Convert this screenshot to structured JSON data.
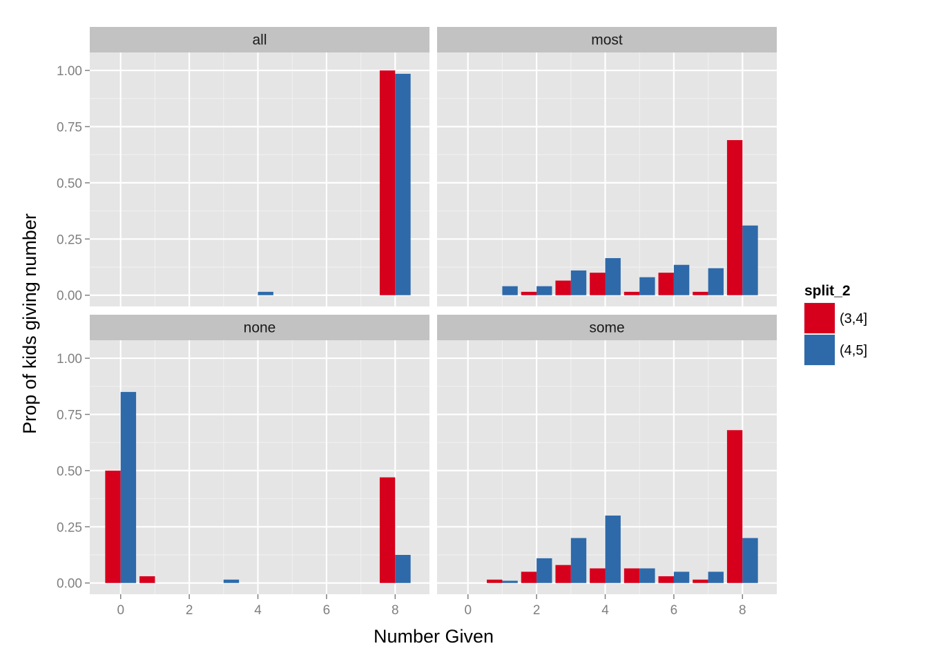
{
  "chart_data": {
    "type": "bar",
    "xlabel": "Number Given",
    "ylabel": "Prop of kids giving number",
    "xlim": [
      -0.9,
      9.0
    ],
    "ylim": [
      -0.05,
      1.08
    ],
    "x_ticks": [
      0,
      2,
      4,
      6,
      8
    ],
    "x_tick_labels": [
      "0",
      "2",
      "4",
      "6",
      "8"
    ],
    "y_ticks": [
      0,
      0.25,
      0.5,
      0.75,
      1.0
    ],
    "y_tick_labels": [
      "0.00",
      "0.25",
      "0.50",
      "0.75",
      "1.00"
    ],
    "grid": true,
    "legend": {
      "title": "split_2",
      "position": "right",
      "entries": [
        {
          "label": "(3,4]",
          "color": "#d7001c"
        },
        {
          "label": "(4,5]",
          "color": "#2e6aaa"
        }
      ]
    },
    "facets": [
      {
        "label": "all",
        "series": [
          {
            "group": "(3,4]",
            "points": [
              {
                "x": 8,
                "y": 1.0
              }
            ]
          },
          {
            "group": "(4,5]",
            "points": [
              {
                "x": 4,
                "y": 0.015
              },
              {
                "x": 8,
                "y": 0.985
              }
            ]
          }
        ]
      },
      {
        "label": "most",
        "series": [
          {
            "group": "(3,4]",
            "points": [
              {
                "x": 2,
                "y": 0.015
              },
              {
                "x": 3,
                "y": 0.065
              },
              {
                "x": 4,
                "y": 0.1
              },
              {
                "x": 5,
                "y": 0.015
              },
              {
                "x": 6,
                "y": 0.1
              },
              {
                "x": 7,
                "y": 0.015
              },
              {
                "x": 8,
                "y": 0.69
              }
            ]
          },
          {
            "group": "(4,5]",
            "points": [
              {
                "x": 1,
                "y": 0.04
              },
              {
                "x": 2,
                "y": 0.04
              },
              {
                "x": 3,
                "y": 0.11
              },
              {
                "x": 4,
                "y": 0.165
              },
              {
                "x": 5,
                "y": 0.08
              },
              {
                "x": 6,
                "y": 0.135
              },
              {
                "x": 7,
                "y": 0.12
              },
              {
                "x": 8,
                "y": 0.31
              }
            ]
          }
        ]
      },
      {
        "label": "none",
        "series": [
          {
            "group": "(3,4]",
            "points": [
              {
                "x": 0,
                "y": 0.5
              },
              {
                "x": 1,
                "y": 0.03
              },
              {
                "x": 8,
                "y": 0.47
              }
            ]
          },
          {
            "group": "(4,5]",
            "points": [
              {
                "x": 0,
                "y": 0.85
              },
              {
                "x": 3,
                "y": 0.015
              },
              {
                "x": 8,
                "y": 0.125
              }
            ]
          }
        ]
      },
      {
        "label": "some",
        "series": [
          {
            "group": "(3,4]",
            "points": [
              {
                "x": 1,
                "y": 0.015
              },
              {
                "x": 2,
                "y": 0.05
              },
              {
                "x": 3,
                "y": 0.08
              },
              {
                "x": 4,
                "y": 0.065
              },
              {
                "x": 5,
                "y": 0.065
              },
              {
                "x": 6,
                "y": 0.03
              },
              {
                "x": 7,
                "y": 0.015
              },
              {
                "x": 8,
                "y": 0.68
              }
            ]
          },
          {
            "group": "(4,5]",
            "points": [
              {
                "x": 1,
                "y": 0.01
              },
              {
                "x": 2,
                "y": 0.11
              },
              {
                "x": 3,
                "y": 0.2
              },
              {
                "x": 4,
                "y": 0.3
              },
              {
                "x": 5,
                "y": 0.065
              },
              {
                "x": 6,
                "y": 0.05
              },
              {
                "x": 7,
                "y": 0.05
              },
              {
                "x": 8,
                "y": 0.2
              }
            ]
          }
        ]
      }
    ]
  }
}
